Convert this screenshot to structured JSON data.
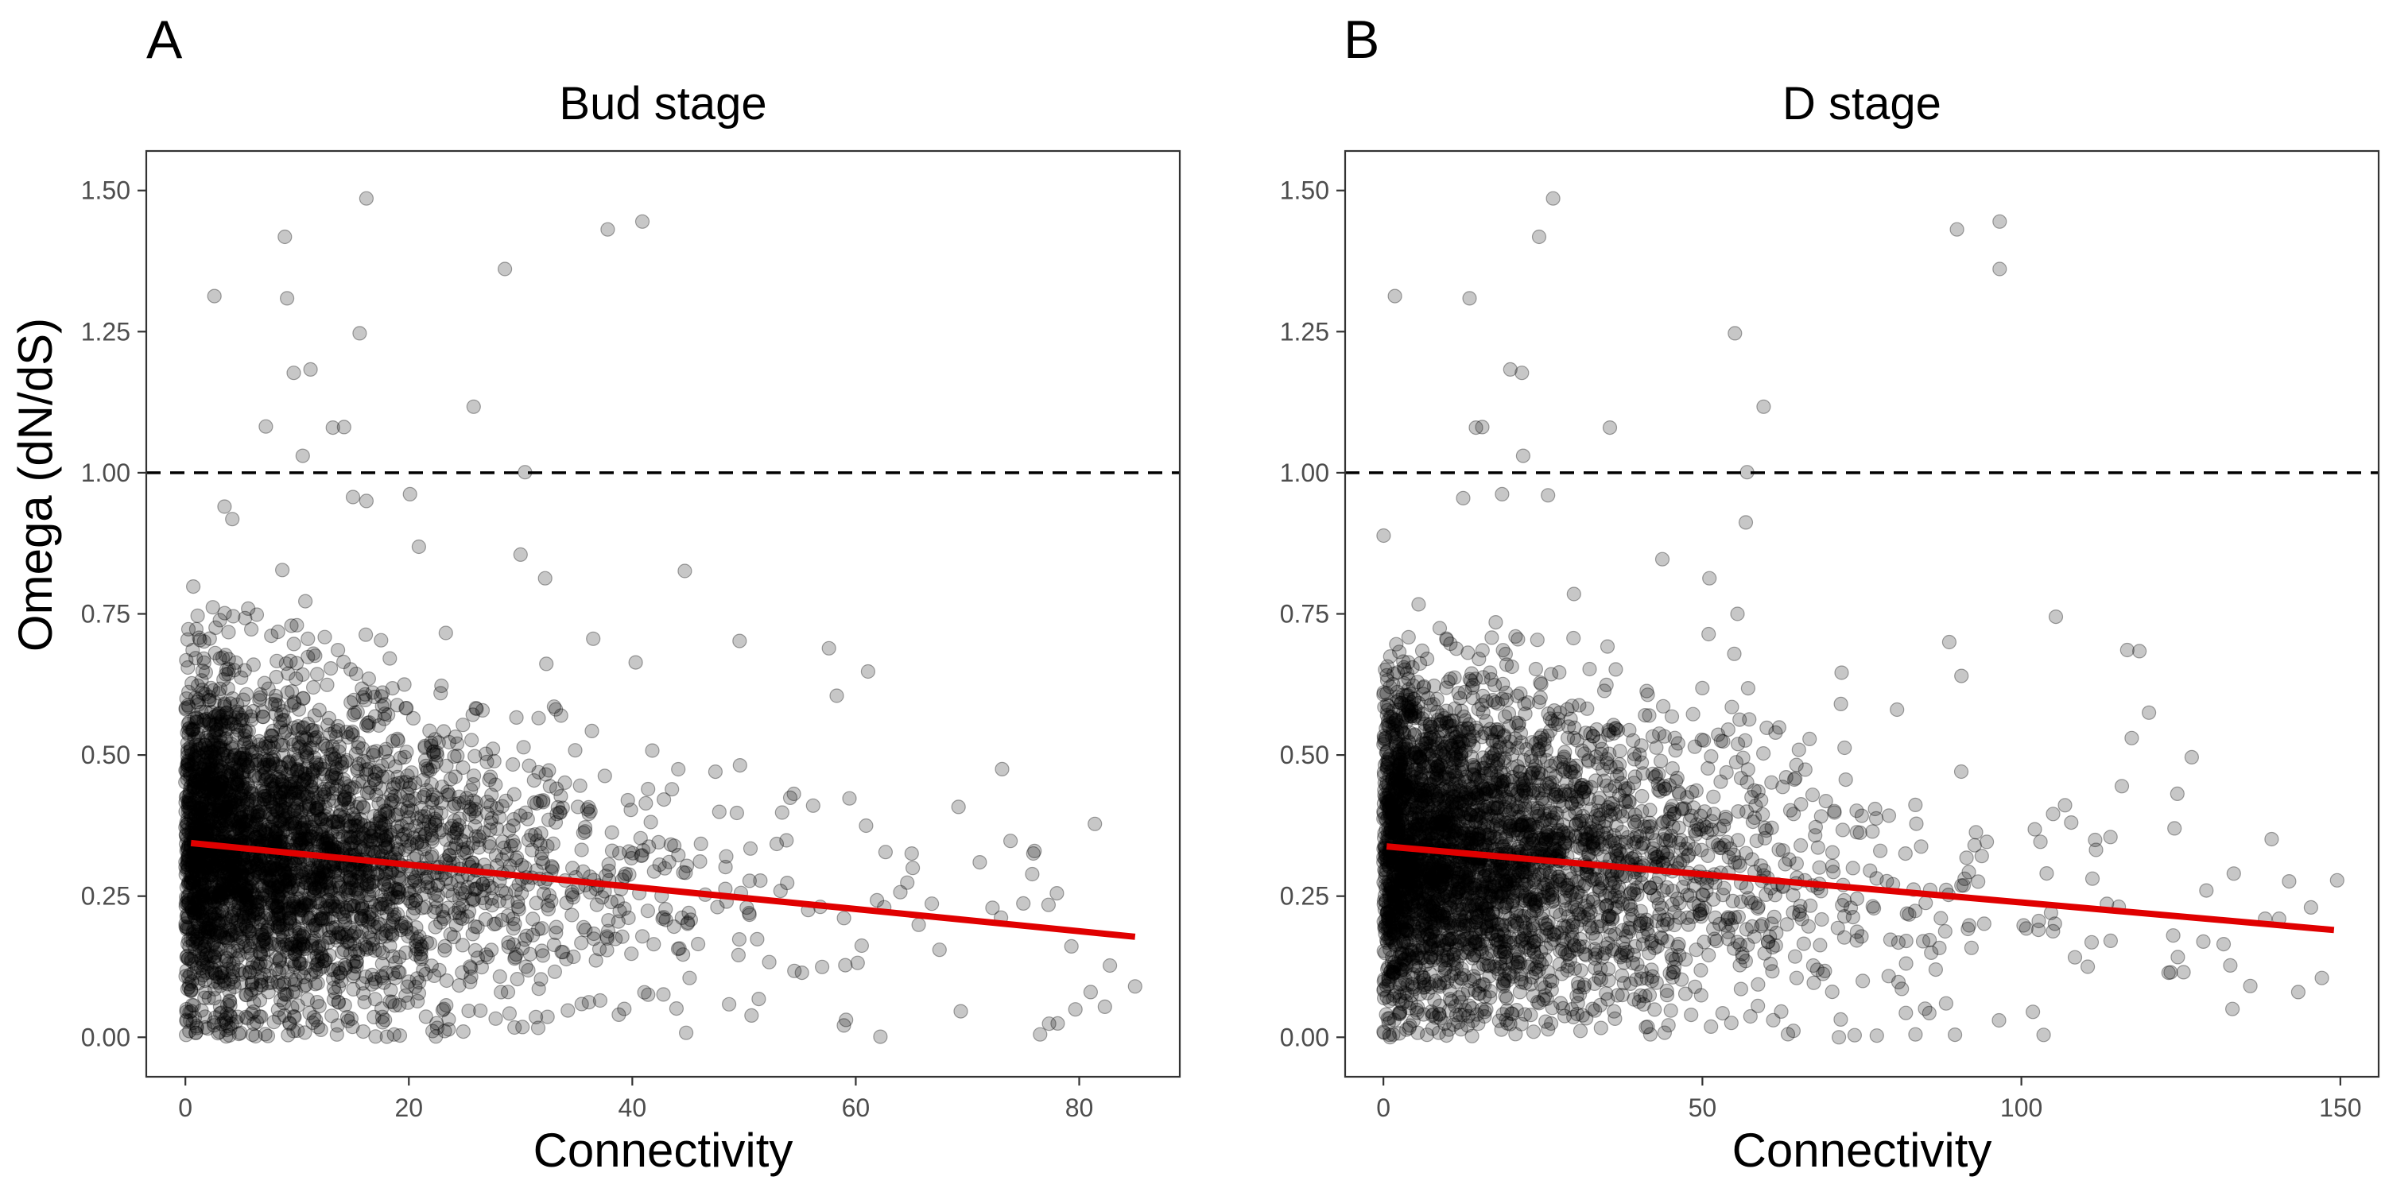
{
  "chart_data": [
    {
      "panel_label": "A",
      "type": "scatter",
      "title": "Bud stage",
      "xlabel": "Connectivity",
      "ylabel": "Omega (dN/dS)",
      "xlim": [
        -3.5,
        89
      ],
      "ylim": [
        -0.07,
        1.57
      ],
      "xticks": [
        0,
        20,
        40,
        60,
        80
      ],
      "xtick_labels": [
        "0",
        "20",
        "40",
        "60",
        "80"
      ],
      "yticks": [
        0,
        0.25,
        0.5,
        0.75,
        1.0,
        1.25,
        1.5
      ],
      "ytick_labels": [
        "0.00",
        "0.25",
        "0.50",
        "0.75",
        "1.00",
        "1.25",
        "1.50"
      ],
      "reference_line": {
        "y": 1.0,
        "style": "dashed"
      },
      "fit_line": {
        "x": [
          0.5,
          85
        ],
        "y": [
          0.344,
          0.178
        ],
        "color": "#e00000"
      },
      "grid": false,
      "point_color": "#000000",
      "point_alpha": 0.22,
      "outliers": [
        [
          2.6,
          1.313
        ],
        [
          8.9,
          1.418
        ],
        [
          9.1,
          1.309
        ],
        [
          16.2,
          1.486
        ],
        [
          15.6,
          1.247
        ],
        [
          37.8,
          1.431
        ],
        [
          40.9,
          1.445
        ],
        [
          28.6,
          1.361
        ],
        [
          25.8,
          1.117
        ],
        [
          9.7,
          1.177
        ],
        [
          11.2,
          1.183
        ],
        [
          13.2,
          1.08
        ],
        [
          14.2,
          1.081
        ],
        [
          7.2,
          1.082
        ],
        [
          10.5,
          1.03
        ],
        [
          30.4,
          1.001
        ],
        [
          30.0,
          0.855
        ],
        [
          32.2,
          0.813
        ],
        [
          44.7,
          0.826
        ],
        [
          20.1,
          0.962
        ],
        [
          20.9,
          0.869
        ],
        [
          15.0,
          0.957
        ],
        [
          16.2,
          0.95
        ],
        [
          4.2,
          0.918
        ],
        [
          3.5,
          0.94
        ],
        [
          49.6,
          0.702
        ],
        [
          57.6,
          0.689
        ],
        [
          61.1,
          0.648
        ],
        [
          73.1,
          0.475
        ],
        [
          81.4,
          0.378
        ],
        [
          79.3,
          0.161
        ],
        [
          82.3,
          0.054
        ],
        [
          85.0,
          0.09
        ],
        [
          77.3,
          0.024
        ],
        [
          76.5,
          0.005
        ],
        [
          73.0,
          0.212
        ],
        [
          75.0,
          0.237
        ],
        [
          69.4,
          0.046
        ],
        [
          67.5,
          0.155
        ],
        [
          62.2,
          0.001
        ],
        [
          71.1,
          0.31
        ],
        [
          69.2,
          0.408
        ],
        [
          65.1,
          0.3
        ],
        [
          76.0,
          0.33
        ],
        [
          78.0,
          0.255
        ],
        [
          6.1,
          0.66
        ],
        [
          19.2,
          0.003
        ],
        [
          36.5,
          0.706
        ],
        [
          40.3,
          0.664
        ],
        [
          58.3,
          0.605
        ]
      ]
    },
    {
      "panel_label": "B",
      "type": "scatter",
      "title": "D stage",
      "xlabel": "Connectivity",
      "ylabel": "",
      "xlim": [
        -6,
        156
      ],
      "ylim": [
        -0.07,
        1.57
      ],
      "xticks": [
        0,
        50,
        100,
        150
      ],
      "xtick_labels": [
        "0",
        "50",
        "100",
        "150"
      ],
      "yticks": [
        0,
        0.25,
        0.5,
        0.75,
        1.0,
        1.25,
        1.5
      ],
      "ytick_labels": [
        "0.00",
        "0.25",
        "0.50",
        "0.75",
        "1.00",
        "1.25",
        "1.50"
      ],
      "reference_line": {
        "y": 1.0,
        "style": "dashed"
      },
      "fit_line": {
        "x": [
          0.5,
          149
        ],
        "y": [
          0.338,
          0.19
        ],
        "color": "#e00000"
      },
      "grid": false,
      "point_color": "#000000",
      "point_alpha": 0.22,
      "outliers": [
        [
          1.8,
          1.313
        ],
        [
          24.4,
          1.418
        ],
        [
          26.6,
          1.486
        ],
        [
          13.5,
          1.309
        ],
        [
          55.1,
          1.247
        ],
        [
          89.9,
          1.431
        ],
        [
          96.6,
          1.445
        ],
        [
          96.6,
          1.361
        ],
        [
          59.6,
          1.117
        ],
        [
          19.9,
          1.183
        ],
        [
          21.7,
          1.177
        ],
        [
          14.5,
          1.08
        ],
        [
          15.5,
          1.081
        ],
        [
          35.5,
          1.08
        ],
        [
          21.9,
          1.03
        ],
        [
          57.0,
          1.001
        ],
        [
          56.8,
          0.912
        ],
        [
          51.1,
          0.813
        ],
        [
          55.5,
          0.75
        ],
        [
          18.6,
          0.962
        ],
        [
          25.8,
          0.96
        ],
        [
          12.5,
          0.955
        ],
        [
          90.6,
          0.64
        ],
        [
          88.7,
          0.7
        ],
        [
          116.6,
          0.686
        ],
        [
          118.5,
          0.684
        ],
        [
          105.4,
          0.745
        ],
        [
          126.7,
          0.496
        ],
        [
          124.0,
          0.37
        ],
        [
          133.3,
          0.29
        ],
        [
          140.4,
          0.21
        ],
        [
          143.4,
          0.08
        ],
        [
          147.1,
          0.105
        ],
        [
          149.5,
          0.278
        ],
        [
          145.4,
          0.23
        ],
        [
          138.2,
          0.21
        ],
        [
          131.7,
          0.165
        ],
        [
          123.4,
          0.115
        ],
        [
          129.0,
          0.26
        ],
        [
          101.8,
          0.045
        ],
        [
          96.5,
          0.03
        ],
        [
          83.4,
          0.005
        ],
        [
          71.4,
          0.0
        ],
        [
          88.2,
          0.06
        ],
        [
          110.4,
          0.125
        ],
        [
          19.3,
          0.66
        ],
        [
          46.4,
          0.212
        ],
        [
          84.6,
          0.17
        ],
        [
          120.0,
          0.575
        ],
        [
          117.3,
          0.53
        ]
      ]
    }
  ]
}
